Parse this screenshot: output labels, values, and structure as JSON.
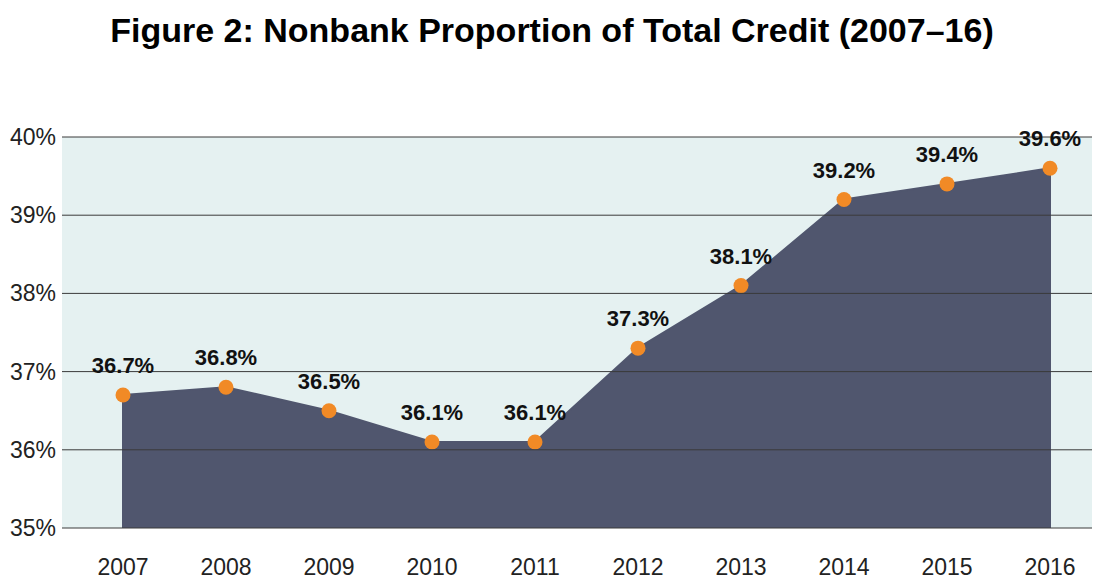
{
  "chart_data": {
    "type": "area",
    "title": "Figure 2: Nonbank Proportion of Total Credit (2007–16)",
    "categories": [
      "2007",
      "2008",
      "2009",
      "2010",
      "2011",
      "2012",
      "2013",
      "2014",
      "2015",
      "2016"
    ],
    "values": [
      36.7,
      36.8,
      36.5,
      36.1,
      36.1,
      37.3,
      38.1,
      39.2,
      39.4,
      39.6
    ],
    "value_labels": [
      "36.7%",
      "36.8%",
      "36.5%",
      "36.1%",
      "36.1%",
      "37.3%",
      "38.1%",
      "39.2%",
      "39.4%",
      "39.6%"
    ],
    "color": "#50566e",
    "marker": "circle",
    "data_labels": true,
    "grid": true,
    "ylim": [
      35,
      40
    ],
    "yticks": [
      {
        "value": 35,
        "label": "35%"
      },
      {
        "value": 36,
        "label": "36%"
      },
      {
        "value": 37,
        "label": "37%"
      },
      {
        "value": 38,
        "label": "38%"
      },
      {
        "value": 39,
        "label": "39%"
      },
      {
        "value": 40,
        "label": "40%"
      }
    ]
  }
}
